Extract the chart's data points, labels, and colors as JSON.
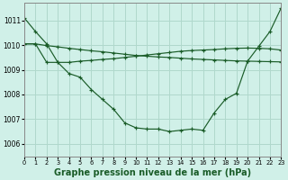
{
  "background_color": "#d0f0e8",
  "grid_color": "#b0d8cc",
  "line_color": "#1a5c28",
  "xlabel": "Graphe pression niveau de la mer (hPa)",
  "xlabel_fontsize": 7.0,
  "ylim": [
    1005.5,
    1011.7
  ],
  "xlim": [
    0,
    23
  ],
  "yticks": [
    1006,
    1007,
    1008,
    1009,
    1010,
    1011
  ],
  "xticks": [
    0,
    1,
    2,
    3,
    4,
    5,
    6,
    7,
    8,
    9,
    10,
    11,
    12,
    13,
    14,
    15,
    16,
    17,
    18,
    19,
    20,
    21,
    22,
    23
  ],
  "series": [
    [
      1011.1,
      1010.55,
      1010.05,
      1009.3,
      1008.85,
      1008.7,
      1008.2,
      1007.8,
      1007.4,
      1006.85,
      1006.65,
      1006.6,
      1006.6,
      1006.5,
      1006.55,
      1006.6,
      1006.55,
      1007.25,
      1007.8,
      1008.05,
      1009.35,
      1009.95,
      1010.55,
      1011.5
    ],
    [
      1010.05,
      1010.05,
      1009.98,
      1009.93,
      1009.87,
      1009.82,
      1009.77,
      1009.73,
      1009.68,
      1009.63,
      1009.58,
      1009.55,
      1009.52,
      1009.5,
      1009.47,
      1009.44,
      1009.42,
      1009.4,
      1009.38,
      1009.36,
      1009.35,
      1009.34,
      1009.33,
      1009.32
    ],
    [
      1010.05,
      1010.05,
      1009.3,
      1009.3,
      1009.3,
      1009.35,
      1009.38,
      1009.42,
      1009.45,
      1009.5,
      1009.55,
      1009.6,
      1009.65,
      1009.7,
      1009.75,
      1009.78,
      1009.8,
      1009.82,
      1009.85,
      1009.87,
      1009.88,
      1009.87,
      1009.85,
      1009.8
    ]
  ]
}
